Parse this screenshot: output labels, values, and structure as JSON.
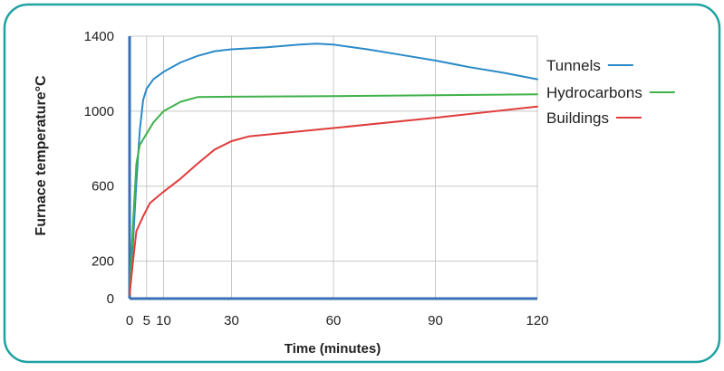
{
  "colors": {
    "border": "#1fa2a2",
    "axis": "#3a6fb3",
    "grid": "#c8c8c8",
    "text": "#222222"
  },
  "chart_data": {
    "type": "line",
    "xlabel": "Time (minutes)",
    "ylabel": "Furnace temperature°C",
    "xlim": [
      0,
      120
    ],
    "ylim": [
      0,
      1400
    ],
    "x_ticks": [
      0,
      5,
      10,
      30,
      60,
      90,
      120
    ],
    "y_ticks": [
      0,
      200,
      600,
      1000,
      1400
    ],
    "grid": true,
    "legend_position": "right",
    "series": [
      {
        "name": "Tunnels",
        "color": "#2a8ac8",
        "points": [
          [
            0,
            20
          ],
          [
            1,
            300
          ],
          [
            2,
            620
          ],
          [
            3,
            900
          ],
          [
            4,
            1060
          ],
          [
            5,
            1120
          ],
          [
            7,
            1170
          ],
          [
            10,
            1210
          ],
          [
            15,
            1260
          ],
          [
            20,
            1295
          ],
          [
            25,
            1320
          ],
          [
            30,
            1330
          ],
          [
            40,
            1340
          ],
          [
            50,
            1355
          ],
          [
            55,
            1360
          ],
          [
            60,
            1355
          ],
          [
            70,
            1330
          ],
          [
            80,
            1300
          ],
          [
            90,
            1270
          ],
          [
            100,
            1235
          ],
          [
            110,
            1205
          ],
          [
            120,
            1170
          ]
        ]
      },
      {
        "name": "Hydrocarbons",
        "color": "#3fb24a",
        "points": [
          [
            0,
            20
          ],
          [
            1,
            400
          ],
          [
            2,
            720
          ],
          [
            3,
            820
          ],
          [
            5,
            880
          ],
          [
            7,
            940
          ],
          [
            10,
            1000
          ],
          [
            15,
            1050
          ],
          [
            20,
            1075
          ],
          [
            30,
            1077
          ],
          [
            60,
            1080
          ],
          [
            90,
            1085
          ],
          [
            120,
            1090
          ]
        ]
      },
      {
        "name": "Buildings",
        "color": "#e03c3c",
        "points": [
          [
            0,
            20
          ],
          [
            1,
            200
          ],
          [
            2,
            360
          ],
          [
            4,
            440
          ],
          [
            6,
            510
          ],
          [
            10,
            570
          ],
          [
            15,
            640
          ],
          [
            20,
            720
          ],
          [
            25,
            795
          ],
          [
            30,
            840
          ],
          [
            35,
            865
          ],
          [
            60,
            910
          ],
          [
            90,
            965
          ],
          [
            120,
            1025
          ]
        ]
      }
    ]
  }
}
